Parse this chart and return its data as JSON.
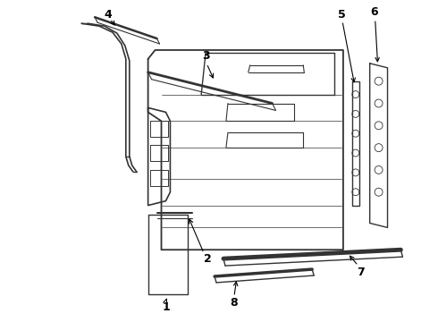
{
  "background_color": "#ffffff",
  "line_color": "#333333",
  "label_color": "#000000",
  "fig_width": 4.9,
  "fig_height": 3.6,
  "dpi": 100,
  "label_fontsize": 8
}
